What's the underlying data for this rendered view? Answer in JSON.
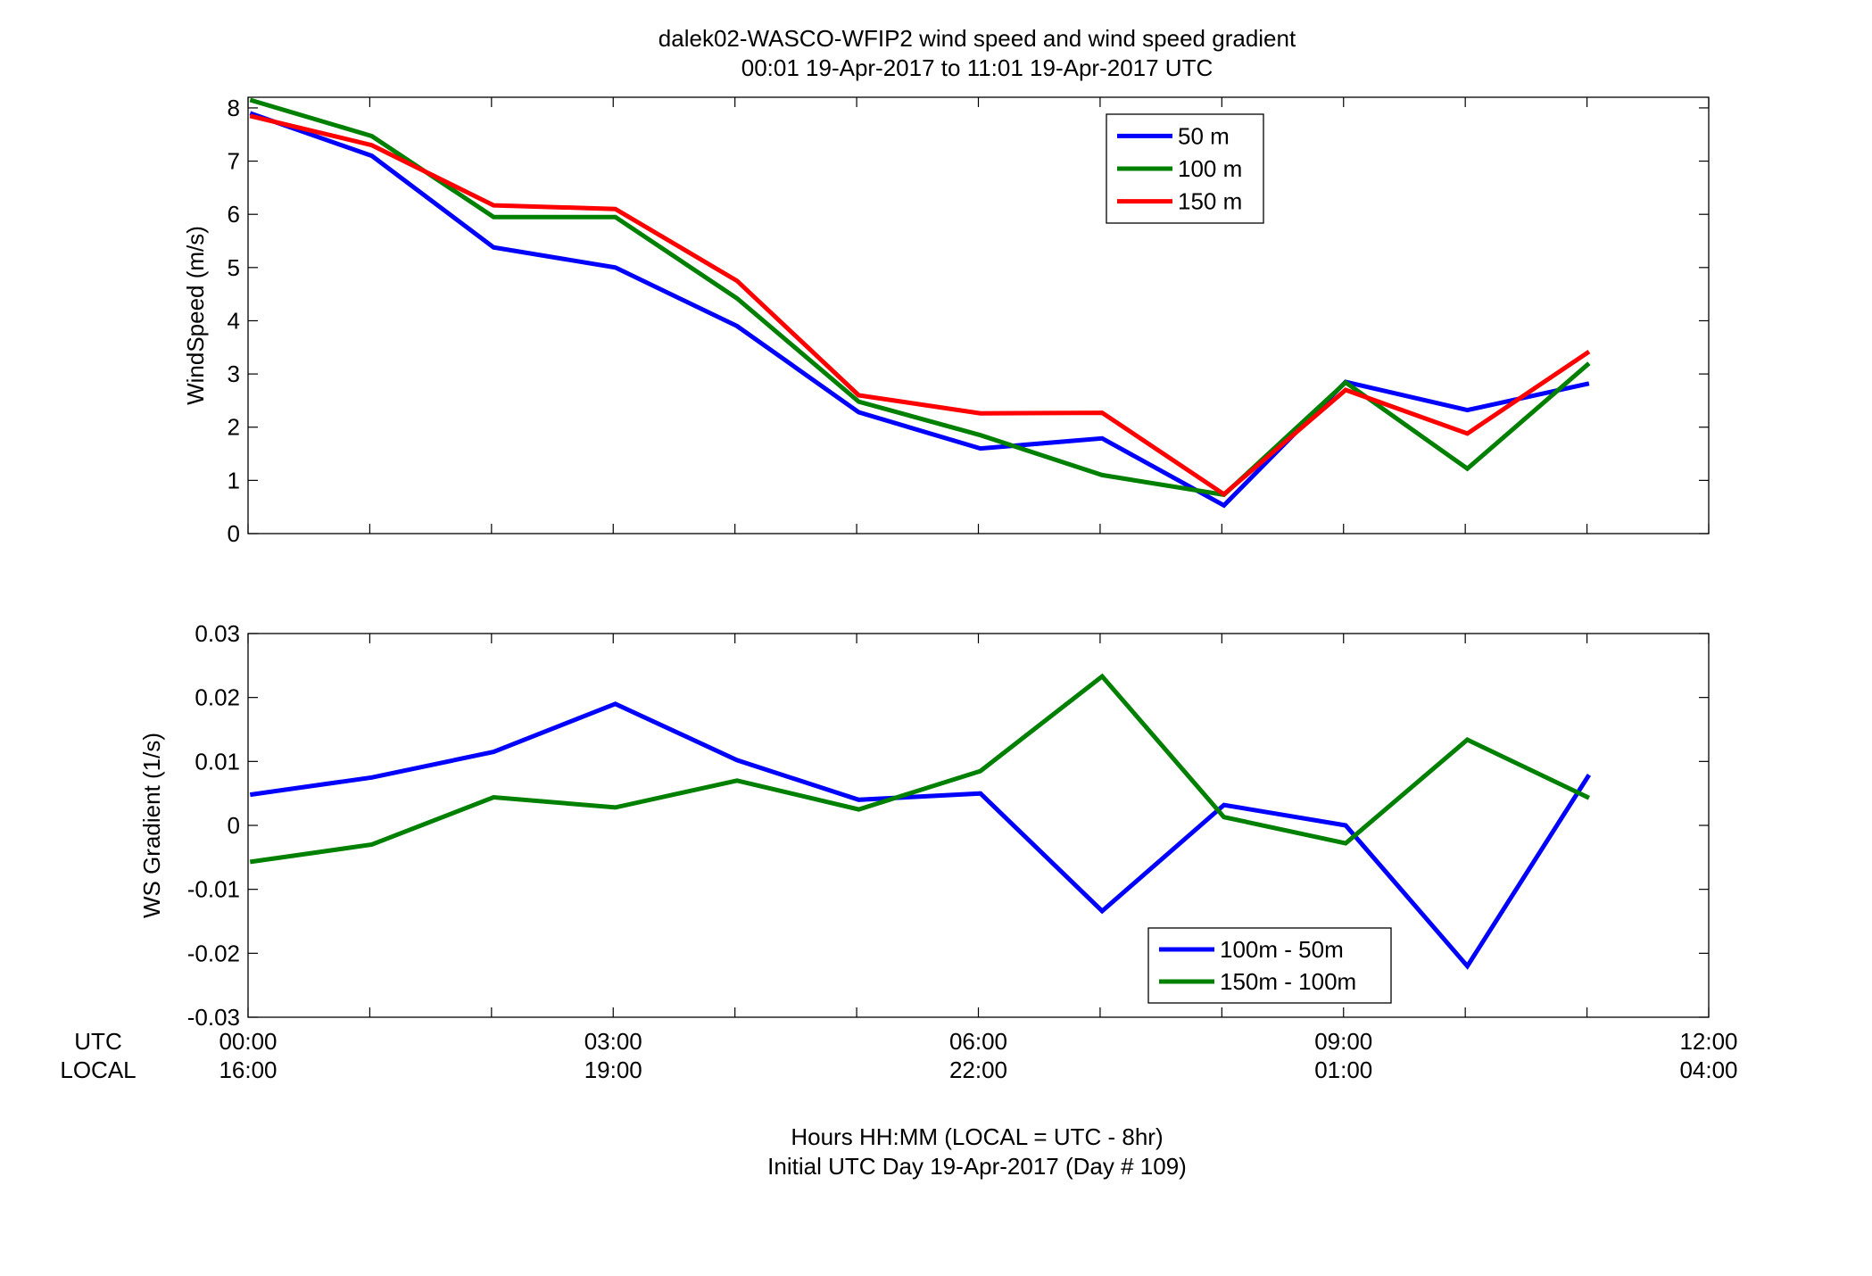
{
  "title_line1": "dalek02-WASCO-WFIP2  wind speed and wind speed gradient",
  "title_line2": "00:01 19-Apr-2017 to 11:01 19-Apr-2017  UTC",
  "row_labels": {
    "utc": "UTC",
    "local": "LOCAL"
  },
  "xlabel_line1": "Hours HH:MM  (LOCAL = UTC - 8hr)",
  "xlabel_line2": "Initial UTC Day 19-Apr-2017 (Day # 109)",
  "x_ticks": [
    {
      "utc": "00:00",
      "local": "16:00",
      "hour": 0
    },
    {
      "utc": "03:00",
      "local": "19:00",
      "hour": 3
    },
    {
      "utc": "06:00",
      "local": "22:00",
      "hour": 6
    },
    {
      "utc": "09:00",
      "local": "01:00",
      "hour": 9
    },
    {
      "utc": "12:00",
      "local": "04:00",
      "hour": 12
    }
  ],
  "chart_data": [
    {
      "type": "line",
      "ylabel": "WindSpeed (m/s)",
      "xlim": [
        0,
        12
      ],
      "ylim": [
        0,
        8.2
      ],
      "yticks": [
        "0",
        "1",
        "2",
        "3",
        "4",
        "5",
        "6",
        "7",
        "8"
      ],
      "ytick_values": [
        0,
        1,
        2,
        3,
        4,
        5,
        6,
        7,
        8
      ],
      "minor_x_ticks": [
        0,
        1,
        2,
        3,
        4,
        5,
        6,
        7,
        8,
        9,
        10,
        11,
        12
      ],
      "legend_position": "top-right",
      "x": [
        0.017,
        1.017,
        2.017,
        3.017,
        4.017,
        5.017,
        6.017,
        7.017,
        8.017,
        9.017,
        10.017,
        11.017
      ],
      "series": [
        {
          "name": "50 m",
          "color": "#0000ff",
          "values": [
            7.9,
            7.1,
            5.38,
            5.0,
            3.9,
            2.28,
            1.6,
            1.79,
            0.53,
            2.85,
            2.32,
            2.82
          ]
        },
        {
          "name": "100 m",
          "color": "#008000",
          "values": [
            8.15,
            7.47,
            5.95,
            5.95,
            4.42,
            2.48,
            1.85,
            1.1,
            0.73,
            2.84,
            1.22,
            3.2
          ]
        },
        {
          "name": "150 m",
          "color": "#ff0000",
          "values": [
            7.85,
            7.3,
            6.17,
            6.1,
            4.75,
            2.6,
            2.26,
            2.27,
            0.74,
            2.7,
            1.88,
            3.42
          ]
        }
      ]
    },
    {
      "type": "line",
      "ylabel": "WS Gradient (1/s)",
      "xlim": [
        0,
        12
      ],
      "ylim": [
        -0.03,
        0.03
      ],
      "yticks": [
        "-0.03",
        "-0.02",
        "-0.01",
        "0",
        "0.01",
        "0.02",
        "0.03"
      ],
      "ytick_values": [
        -0.03,
        -0.02,
        -0.01,
        0,
        0.01,
        0.02,
        0.03
      ],
      "minor_x_ticks": [
        0,
        1,
        2,
        3,
        4,
        5,
        6,
        7,
        8,
        9,
        10,
        11,
        12
      ],
      "legend_position": "bottom-right",
      "x": [
        0.017,
        1.017,
        2.017,
        3.017,
        4.017,
        5.017,
        6.017,
        7.017,
        8.017,
        9.017,
        10.017,
        11.017
      ],
      "series": [
        {
          "name": "100m - 50m",
          "color": "#0000ff",
          "values": [
            0.0048,
            0.0075,
            0.0115,
            0.019,
            0.0102,
            0.004,
            0.005,
            -0.0134,
            0.0032,
            0.0,
            -0.022,
            0.0079
          ]
        },
        {
          "name": "150m - 100m",
          "color": "#008000",
          "values": [
            -0.0057,
            -0.003,
            0.0044,
            0.0028,
            0.007,
            0.0025,
            0.0085,
            0.0233,
            0.0013,
            -0.0028,
            0.0134,
            0.0043
          ]
        }
      ]
    }
  ]
}
